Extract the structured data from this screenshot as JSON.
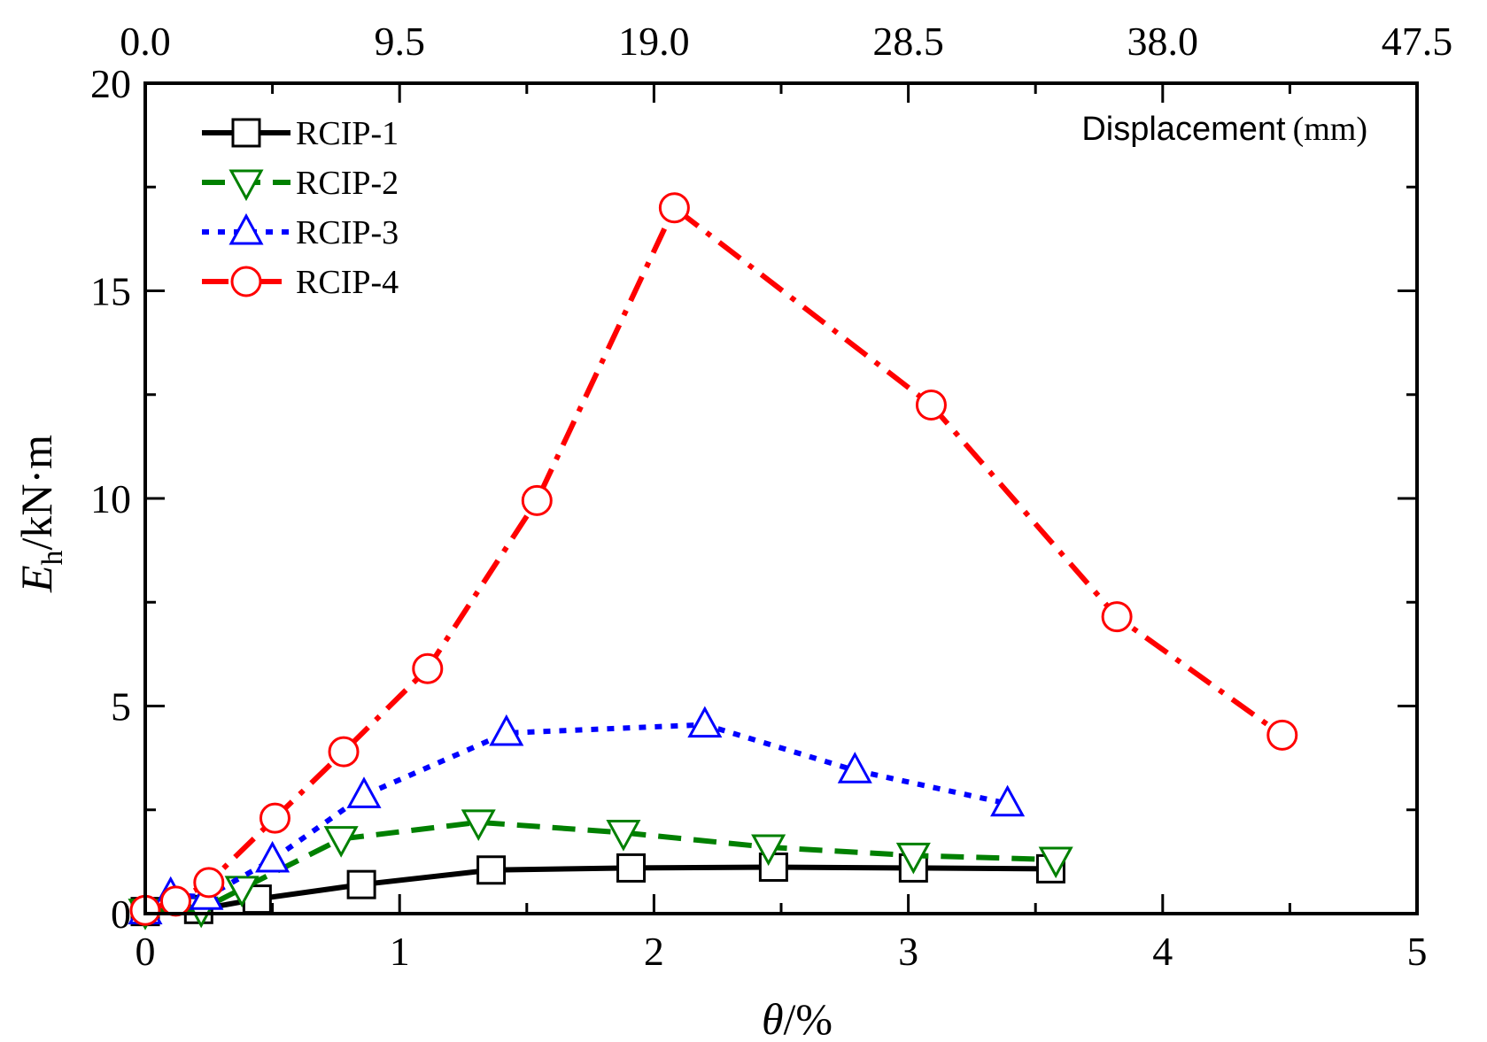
{
  "chart_data": {
    "type": "line",
    "xlabel_italic": "θ",
    "xlabel_rest": "/%",
    "ylabel_italic": "E",
    "ylabel_sub": "h",
    "ylabel_rest": "/kN·m",
    "xlim": [
      0,
      5
    ],
    "ylim": [
      0,
      20
    ],
    "x_ticks": [
      "0",
      "1",
      "2",
      "3",
      "4",
      "5"
    ],
    "y_ticks": [
      "0",
      "5",
      "10",
      "15",
      "20"
    ],
    "top_axis": {
      "label": "Displacement",
      "unit": "(mm)",
      "ticks": [
        "0.0",
        "9.5",
        "19.0",
        "28.5",
        "38.0",
        "47.5"
      ]
    },
    "legend_position": "top-left",
    "series": [
      {
        "name": "RCIP-1",
        "color": "#000000",
        "marker": "square",
        "line_style": "solid",
        "x": [
          0.0,
          0.21,
          0.44,
          0.85,
          1.36,
          1.91,
          2.47,
          3.02,
          3.56
        ],
        "y": [
          0.05,
          0.1,
          0.35,
          0.7,
          1.05,
          1.1,
          1.12,
          1.1,
          1.08
        ]
      },
      {
        "name": "RCIP-2",
        "color": "#008000",
        "marker": "triangle-down",
        "line_style": "dash",
        "x": [
          0.0,
          0.22,
          0.38,
          0.77,
          1.31,
          1.88,
          2.45,
          3.02,
          3.58
        ],
        "y": [
          0.05,
          0.1,
          0.6,
          1.8,
          2.2,
          1.95,
          1.6,
          1.4,
          1.3
        ]
      },
      {
        "name": "RCIP-3",
        "color": "#0000ff",
        "marker": "triangle-up",
        "line_style": "dot",
        "x": [
          0.0,
          0.1,
          0.24,
          0.5,
          0.86,
          1.42,
          2.2,
          2.79,
          3.39
        ],
        "y": [
          0.05,
          0.45,
          0.4,
          1.3,
          2.85,
          4.35,
          4.55,
          3.45,
          2.65
        ]
      },
      {
        "name": "RCIP-4",
        "color": "#ff0000",
        "marker": "circle",
        "line_style": "dashdot",
        "x": [
          0.0,
          0.12,
          0.25,
          0.51,
          0.78,
          1.11,
          1.54,
          2.08,
          3.09,
          3.82,
          4.47
        ],
        "y": [
          0.08,
          0.3,
          0.75,
          2.3,
          3.9,
          5.9,
          9.95,
          17.0,
          12.25,
          7.15,
          4.3
        ]
      }
    ]
  }
}
